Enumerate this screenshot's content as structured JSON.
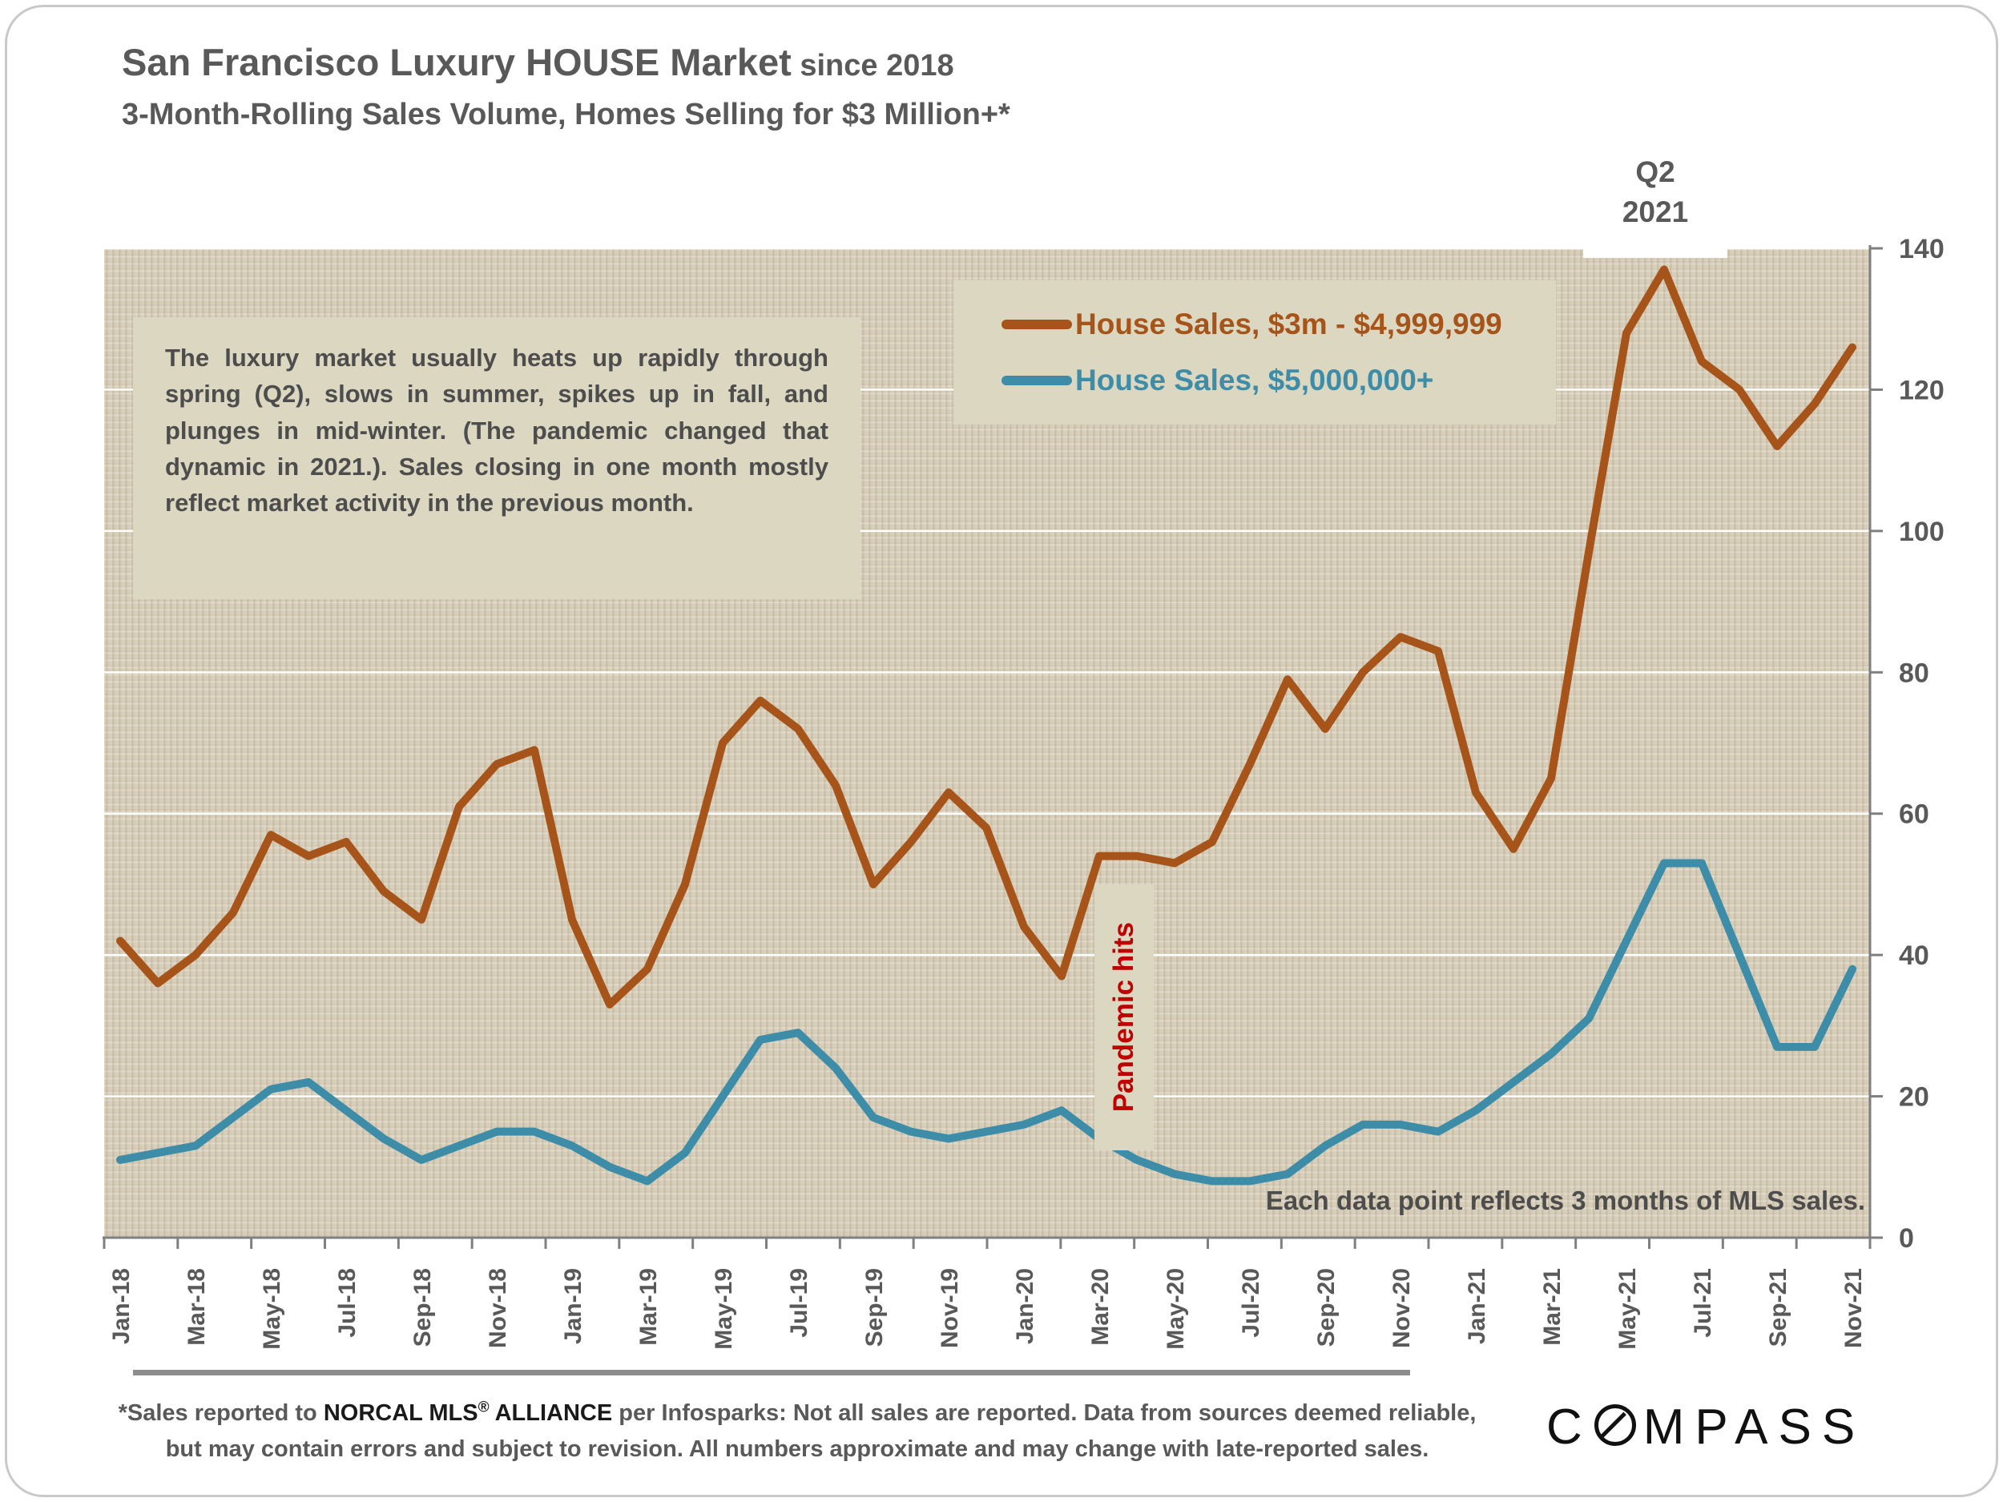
{
  "title": {
    "main": "San Francisco Luxury HOUSE Market",
    "suffix": " since 2018"
  },
  "subtitle": "3-Month-Rolling Sales Volume, Homes Selling for $3 Million+*",
  "commentary": "The luxury market usually heats up rapidly through spring (Q2), slows in summer, spikes up in fall, and plunges in mid-winter.  (The pandemic changed that dynamic in 2021.). Sales closing in one month mostly reflect market activity in the previous month.",
  "annotations": {
    "q2_line1": "Q2",
    "q2_line2": "2021",
    "pandemic": "Pandemic hits",
    "note": "Each data point reflects 3 months of MLS sales."
  },
  "footer": {
    "line1_pre": "*Sales reported to ",
    "line1_brand": "NORCAL MLS",
    "line1_reg": "®",
    "line1_brand2": " ALLIANCE",
    "line1_post": " per Infosparks: Not all sales are reported. Data from sources deemed reliable,",
    "line2": "but may contain errors and subject to revision. All numbers approximate and may change with late-reported sales."
  },
  "logo": {
    "name": "COMPASS",
    "c": "C",
    "rest": "MPASS"
  },
  "colors": {
    "brown": "#A6541A",
    "teal": "#3D8CA8",
    "red": "#C00000",
    "text_gray": "#595959",
    "beige_box": "#DCD7C1",
    "plot_bg": "#D8CFBA",
    "axis_gray": "#7F7F7F",
    "gridline": "#FFFFFF"
  },
  "chart_data": {
    "type": "line",
    "title": "San Francisco Luxury HOUSE Market since 2018 — 3-Month-Rolling Sales Volume, Homes Selling for $3 Million+",
    "x": [
      "Jan-18",
      "Feb-18",
      "Mar-18",
      "Apr-18",
      "May-18",
      "Jun-18",
      "Jul-18",
      "Aug-18",
      "Sep-18",
      "Oct-18",
      "Nov-18",
      "Dec-18",
      "Jan-19",
      "Feb-19",
      "Mar-19",
      "Apr-19",
      "May-19",
      "Jun-19",
      "Jul-19",
      "Aug-19",
      "Sep-19",
      "Oct-19",
      "Nov-19",
      "Dec-19",
      "Jan-20",
      "Feb-20",
      "Mar-20",
      "Apr-20",
      "May-20",
      "Jun-20",
      "Jul-20",
      "Aug-20",
      "Sep-20",
      "Oct-20",
      "Nov-20",
      "Dec-20",
      "Jan-21",
      "Feb-21",
      "Mar-21",
      "Apr-21",
      "May-21",
      "Jun-21",
      "Jul-21",
      "Aug-21",
      "Sep-21",
      "Oct-21",
      "Nov-21"
    ],
    "x_axis_visible_labels": [
      "Jan-18",
      "Mar-18",
      "May-18",
      "Jul-18",
      "Sep-18",
      "Nov-18",
      "Jan-19",
      "Mar-19",
      "May-19",
      "Jul-19",
      "Sep-19",
      "Nov-19",
      "Jan-20",
      "Mar-20",
      "May-20",
      "Jul-20",
      "Sep-20",
      "Nov-20",
      "Jan-21",
      "Mar-21",
      "May-21",
      "Jul-21",
      "Sep-21",
      "Nov-21"
    ],
    "y_axis": {
      "min": 0,
      "max": 140,
      "step": 20,
      "position": "right"
    },
    "grid": "horizontal-white",
    "legend_position": "top-right-inside",
    "series": [
      {
        "name": "House Sales, $3m - $4,999,999",
        "color": "#A6541A",
        "values": [
          42,
          36,
          40,
          46,
          57,
          54,
          56,
          49,
          45,
          61,
          67,
          69,
          45,
          33,
          38,
          50,
          70,
          76,
          72,
          64,
          50,
          56,
          63,
          58,
          44,
          37,
          54,
          54,
          53,
          56,
          67,
          79,
          72,
          80,
          85,
          83,
          63,
          55,
          65,
          97,
          128,
          137,
          124,
          120,
          112,
          118,
          126
        ]
      },
      {
        "name": "House Sales, $5,000,000+",
        "color": "#3D8CA8",
        "values": [
          11,
          12,
          13,
          17,
          21,
          22,
          18,
          14,
          11,
          13,
          15,
          15,
          13,
          10,
          8,
          12,
          20,
          28,
          29,
          24,
          17,
          15,
          14,
          15,
          16,
          18,
          14,
          11,
          9,
          8,
          8,
          9,
          13,
          16,
          16,
          15,
          18,
          22,
          26,
          31,
          42,
          53,
          53,
          40,
          27,
          27,
          38
        ]
      }
    ]
  }
}
